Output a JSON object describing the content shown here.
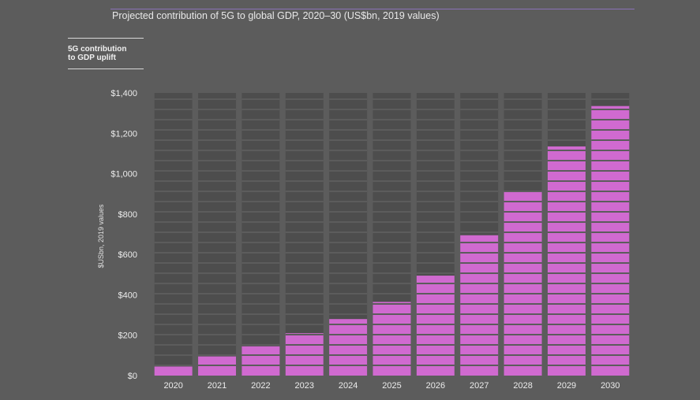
{
  "header": {
    "title": "Projected contribution of 5G to global GDP, 2020–30 (US$bn, 2019 values)",
    "legend_line1": "5G contribution",
    "legend_line2": "to GDP uplift"
  },
  "colors": {
    "background": "#5c5c5c",
    "slot": "#4d4d4d",
    "bar": "#d06ad0",
    "rule": "#8a72b8"
  },
  "chart_data": {
    "type": "bar",
    "title": "Projected contribution of 5G to global GDP, 2020–30 (US$bn, 2019 values)",
    "xlabel": "",
    "ylabel": "$USbn, 2019 values",
    "categories": [
      "2020",
      "2021",
      "2022",
      "2023",
      "2024",
      "2025",
      "2026",
      "2027",
      "2028",
      "2029",
      "2030"
    ],
    "series": [
      {
        "name": "5G contribution to GDP uplift",
        "values": [
          45,
          95,
          145,
          210,
          280,
          365,
          495,
          695,
          915,
          1135,
          1335
        ]
      }
    ],
    "ylim": [
      0,
      1400
    ],
    "yticks": [
      0,
      200,
      400,
      600,
      800,
      1000,
      1200,
      1400
    ],
    "ytick_labels": [
      "$0",
      "$200",
      "$400",
      "$600",
      "$800",
      "$1,000",
      "$1,200",
      "$1,400"
    ],
    "grid": false,
    "legend_position": "top-left"
  }
}
